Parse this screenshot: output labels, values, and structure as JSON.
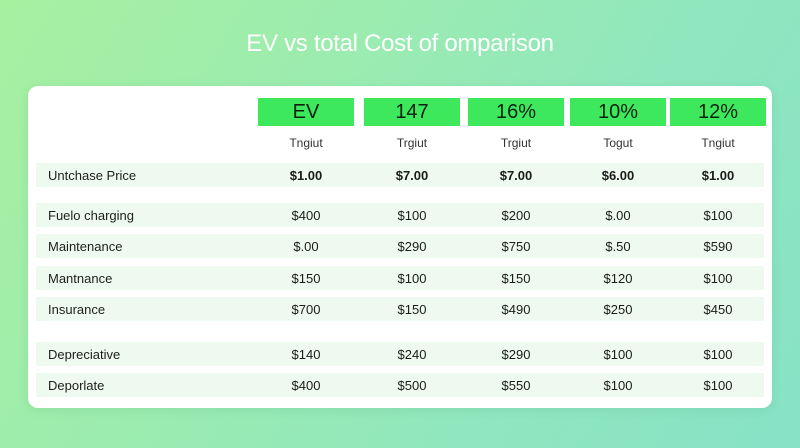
{
  "title": "EV vs total Cost of omparison",
  "columns": [
    "EV",
    "147",
    "16%",
    "10%",
    "12%"
  ],
  "subheaders": [
    "Tngiut",
    "Trgiut",
    "Trgiut",
    "Togut",
    "Tngiut"
  ],
  "rows": [
    {
      "label": "Untchase Price",
      "values": [
        "$1.00",
        "$7.00",
        "$7.00",
        "$6.00",
        "$1.00"
      ],
      "bold": true
    },
    {
      "label": "Fuelo charging",
      "values": [
        "$400",
        "$100",
        "$200",
        "$.00",
        "$100"
      ]
    },
    {
      "label": "Maintenance",
      "values": [
        "$.00",
        "$290",
        "$750",
        "$.50",
        "$590"
      ]
    },
    {
      "label": "Mantnance",
      "values": [
        "$150",
        "$100",
        "$150",
        "$120",
        "$100"
      ]
    },
    {
      "label": "Insurance",
      "values": [
        "$700",
        "$150",
        "$490",
        "$250",
        "$450"
      ]
    },
    {
      "label": "Depreciative",
      "values": [
        "$140",
        "$240",
        "$290",
        "$100",
        "$100"
      ]
    },
    {
      "label": "Deporlate",
      "values": [
        "$400",
        "$500",
        "$550",
        "$100",
        "$100"
      ]
    }
  ],
  "colors": {
    "header_bg": "#3ee85c",
    "row_band": "#eefaef"
  }
}
